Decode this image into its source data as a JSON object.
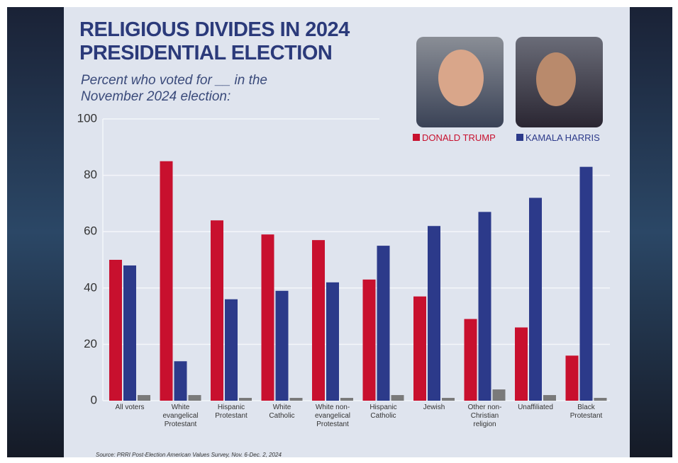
{
  "chart_data": {
    "type": "bar",
    "title": "RELIGIOUS DIVIDES IN 2024 PRESIDENTIAL ELECTION",
    "subtitle": "Percent who voted for __ in the November 2024 election:",
    "source": "Source: PRRI Post-Election American Values Survey, Nov. 6-Dec. 2, 2024",
    "categories": [
      "All voters",
      "White evangelical Protestant",
      "Hispanic Protestant",
      "White Catholic",
      "White non-evangelical Protestant",
      "Hispanic Catholic",
      "Jewish",
      "Other non-Christian religion",
      "Unaffiliated",
      "Black Protestant"
    ],
    "series": [
      {
        "name": "DONALD TRUMP",
        "color": "#c8102e",
        "values": [
          50,
          85,
          64,
          59,
          57,
          43,
          37,
          29,
          26,
          16
        ]
      },
      {
        "name": "KAMALA HARRIS",
        "color": "#2c3a8a",
        "values": [
          48,
          14,
          36,
          39,
          42,
          55,
          62,
          67,
          72,
          83
        ]
      },
      {
        "color": "#7a7a7a",
        "values": [
          2,
          2,
          1,
          1,
          1,
          2,
          1,
          4,
          2,
          1
        ]
      }
    ],
    "ylim": [
      0,
      100
    ],
    "yticks": [
      0,
      20,
      40,
      60,
      80,
      100
    ],
    "grid": true
  }
}
